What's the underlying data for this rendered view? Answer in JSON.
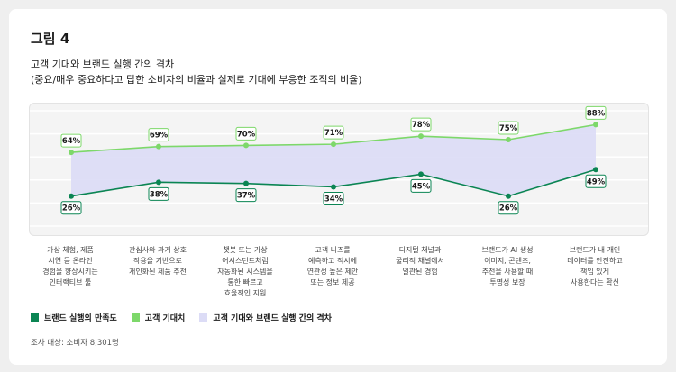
{
  "figure_label": "그림 4",
  "title_lines": [
    "고객 기대와 브랜드 실행 간의 격차",
    "(중요/매우 중요하다고 답한 소비자의 비율과 실제로 기대에 부응한 조직의 비율)"
  ],
  "note": "조사 대상: 소비자 8,301명",
  "colors": {
    "brand": "#0b8553",
    "expectation": "#7dd86a",
    "gap": "#dcdcf6"
  },
  "chart_data": {
    "type": "line",
    "categories": [
      "가상 체험, 제품\n시연 등 온라인\n경험을 향상시키는\n인터랙티브 툴",
      "관심사와 과거 상호\n작용을 기반으로\n개인화된 제품 추천",
      "챗봇 또는 가상\n어시스턴트처럼\n자동화된 시스템을\n통한 빠르고\n효율적인 지원",
      "고객 니즈를\n예측하고 적시에\n연관성 높은 제안\n또는 정보 제공",
      "디지털 채널과\n물리적 채널에서\n일관된 경험",
      "브랜드가 AI 생성\n이미지, 콘텐츠,\n추천을 사용할 때\n투명성 보장",
      "브랜드가 내 개인\n데이터를 안전하고\n책임 있게\n사용한다는 확신"
    ],
    "series": [
      {
        "name": "브랜드 실행의 만족도",
        "values": [
          26,
          38,
          37,
          34,
          45,
          26,
          49
        ]
      },
      {
        "name": "고객 기대치",
        "values": [
          64,
          69,
          70,
          71,
          78,
          75,
          88
        ]
      }
    ],
    "gap_label": "고객 기대와 브랜드 실행 간의 격차",
    "data_labels": {
      "brand": [
        "26%",
        "38%",
        "37%",
        "34%",
        "45%",
        "26%",
        "49%"
      ],
      "expectation": [
        "64%",
        "69%",
        "70%",
        "71%",
        "78%",
        "75%",
        "88%"
      ]
    },
    "ylim": [
      0,
      100
    ],
    "grid": true,
    "legend_position": "bottom-left"
  }
}
